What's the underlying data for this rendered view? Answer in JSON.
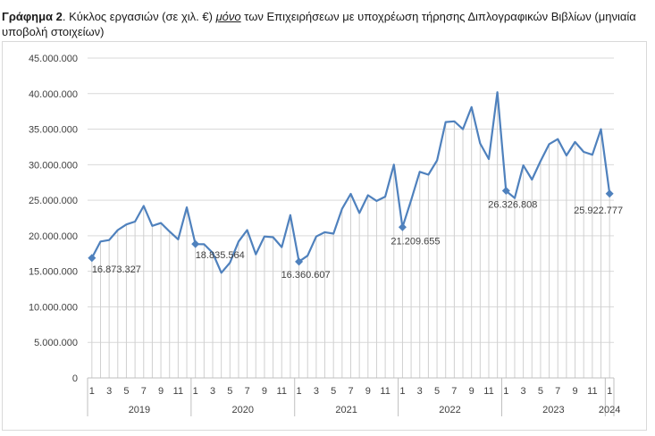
{
  "caption": {
    "lead": "Γράφημα 2",
    "part1": ". Κύκλος εργασιών (σε χιλ. €) ",
    "emph": "μόνο",
    "part2": " των Επιχειρήσεων με υποχρέωση τήρησης Διπλογραφικών Βιβλίων (μηνιαία υποβολή στοιχείων)"
  },
  "chart_data": {
    "type": "line",
    "title": "Γράφημα 2. Κύκλος εργασιών (σε χιλ. €) μόνο των Επιχειρήσεων με υποχρέωση τήρησης Διπλογραφικών Βιβλίων (μηνιαία υποβολή στοιχείων)",
    "xlabel": "",
    "ylabel": "",
    "ylim": [
      0,
      45000000
    ],
    "yticks": [
      "0",
      "5.000.000",
      "10.000.000",
      "15.000.000",
      "20.000.000",
      "25.000.000",
      "30.000.000",
      "35.000.000",
      "40.000.000",
      "45.000.000"
    ],
    "xtick_labels": [
      "1",
      "3",
      "5",
      "7",
      "9",
      "11",
      "1",
      "3",
      "5",
      "7",
      "9",
      "11",
      "1",
      "3",
      "5",
      "7",
      "9",
      "11",
      "1",
      "3",
      "5",
      "7",
      "9",
      "11",
      "1",
      "3",
      "5",
      "7",
      "9",
      "11",
      "1"
    ],
    "years": [
      {
        "label": "2019",
        "months": 12
      },
      {
        "label": "2020",
        "months": 12
      },
      {
        "label": "2021",
        "months": 12
      },
      {
        "label": "2022",
        "months": 12
      },
      {
        "label": "2023",
        "months": 12
      },
      {
        "label": "2024",
        "months": 1
      }
    ],
    "series": [
      {
        "color": "#4f81bd",
        "values": [
          16873327,
          19200000,
          19400000,
          20800000,
          21600000,
          22000000,
          24200000,
          21400000,
          21800000,
          20600000,
          19500000,
          24000000,
          18835564,
          18800000,
          17600000,
          14800000,
          16200000,
          19200000,
          20800000,
          17400000,
          19900000,
          19800000,
          18400000,
          22900000,
          16360607,
          17200000,
          19900000,
          20500000,
          20300000,
          23800000,
          25900000,
          23200000,
          25700000,
          24900000,
          25500000,
          30000000,
          21209655,
          25000000,
          29000000,
          28600000,
          30600000,
          36000000,
          36100000,
          35000000,
          38100000,
          33000000,
          30800000,
          40200000,
          26326808,
          25300000,
          29900000,
          27900000,
          30500000,
          32900000,
          33600000,
          31300000,
          33200000,
          31800000,
          31400000,
          35000000,
          25922777
        ]
      }
    ],
    "highlighted": [
      {
        "index": 0,
        "label": "16.873.327"
      },
      {
        "index": 12,
        "label": "18.835.564"
      },
      {
        "index": 24,
        "label": "16.360.607"
      },
      {
        "index": 36,
        "label": "21.209.655"
      },
      {
        "index": 48,
        "label": "26.326.808"
      },
      {
        "index": 60,
        "label": "25.922.777"
      }
    ],
    "grid": true,
    "legend": "none"
  }
}
